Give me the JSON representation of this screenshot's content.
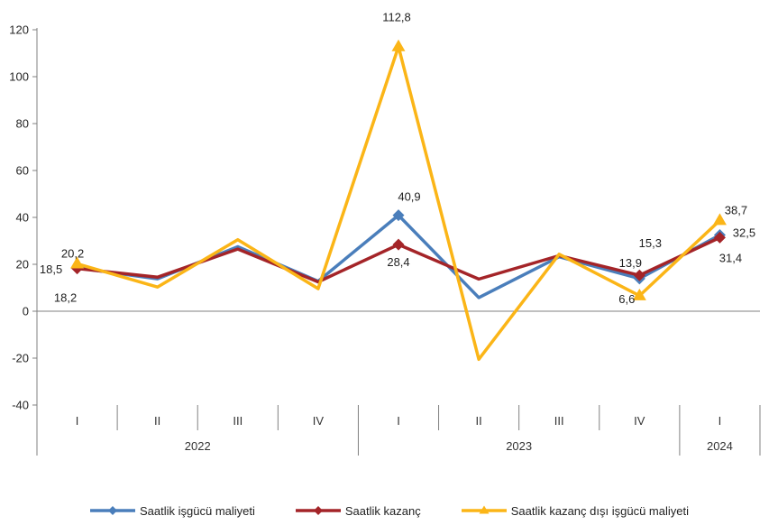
{
  "chart_data": {
    "type": "line",
    "title": "",
    "xlabel": "",
    "ylabel": "",
    "grid": false,
    "legend_position": "bottom",
    "number_format": "comma-decimal",
    "categories": [
      "I",
      "II",
      "III",
      "IV",
      "I",
      "II",
      "III",
      "IV",
      "I"
    ],
    "year_groups": [
      {
        "label": "2022",
        "span": 4
      },
      {
        "label": "2023",
        "span": 4
      },
      {
        "label": "2024",
        "span": 1
      }
    ],
    "y_axis": {
      "min": -40,
      "max": 120,
      "step": 20
    },
    "axis_color": "#808080",
    "series": [
      {
        "name": "Saatlik işgücü maliyeti",
        "color": "#4A7EBB",
        "marker": "diamond",
        "values": [
          18.5,
          13.8,
          27.5,
          12.8,
          40.9,
          5.8,
          23.2,
          13.9,
          32.5
        ],
        "point_labels": [
          {
            "i": 0,
            "t": "18,5",
            "dx": -29,
            "dy": 6
          },
          {
            "i": 4,
            "t": "40,9",
            "dx": 12,
            "dy": -16
          },
          {
            "i": 7,
            "t": "13,9",
            "dx": -10,
            "dy": -13
          },
          {
            "i": 8,
            "t": "32,5",
            "dx": 27,
            "dy": 2
          }
        ]
      },
      {
        "name": "Saatlik kazanç",
        "color": "#A42428",
        "marker": "diamond",
        "values": [
          18.2,
          14.5,
          26.5,
          12.5,
          28.4,
          13.7,
          23.7,
          15.3,
          31.4
        ],
        "point_labels": [
          {
            "i": 0,
            "t": "18,2",
            "dx": -13,
            "dy": 37
          },
          {
            "i": 4,
            "t": "28,4",
            "dx": 0,
            "dy": 24
          },
          {
            "i": 7,
            "t": "15,3",
            "dx": 12,
            "dy": -31
          },
          {
            "i": 8,
            "t": "31,4",
            "dx": 12,
            "dy": 27
          }
        ]
      },
      {
        "name": "Saatlik kazanç dışı işgücü maliyeti",
        "color": "#FBB517",
        "marker": "triangle",
        "values": [
          20.2,
          10.3,
          30.5,
          9.6,
          112.8,
          -20.5,
          24.3,
          6.6,
          38.7
        ],
        "point_labels": [
          {
            "i": 0,
            "t": "20,2",
            "dx": -5,
            "dy": -7
          },
          {
            "i": 4,
            "t": "112,8",
            "dx": -2,
            "dy": -28
          },
          {
            "i": 7,
            "t": "6,6",
            "dx": -14,
            "dy": 8
          },
          {
            "i": 8,
            "t": "38,7",
            "dx": 18,
            "dy": -7
          }
        ]
      }
    ]
  }
}
